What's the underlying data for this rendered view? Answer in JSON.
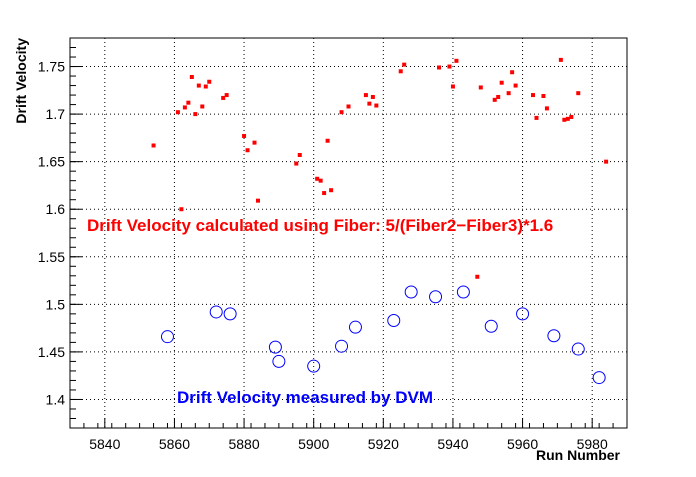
{
  "chart_data": {
    "type": "scatter",
    "title": "",
    "xlabel": "Run Number",
    "ylabel": "Drift Velocity",
    "xlim": [
      5830,
      5990
    ],
    "ylim": [
      1.37,
      1.78
    ],
    "x_ticks": [
      5840,
      5860,
      5880,
      5900,
      5920,
      5940,
      5960,
      5980
    ],
    "y_ticks": [
      1.4,
      1.45,
      1.5,
      1.55,
      1.6,
      1.65,
      1.7,
      1.75
    ],
    "grid": true,
    "annotations": [
      {
        "text": "Drift Velocity calculated using Fiber: 5/(Fiber2−Fiber3)*1.6",
        "color": "#ff0000"
      },
      {
        "text": "Drift Velocity measured by DVM",
        "color": "#0000ff"
      }
    ],
    "series": [
      {
        "marker": "square",
        "color": "#ff0000",
        "points": [
          [
            5854,
            1.667
          ],
          [
            5861,
            1.702
          ],
          [
            5862,
            1.6
          ],
          [
            5863,
            1.707
          ],
          [
            5864,
            1.712
          ],
          [
            5865,
            1.739
          ],
          [
            5866,
            1.7
          ],
          [
            5867,
            1.73
          ],
          [
            5868,
            1.708
          ],
          [
            5869,
            1.729
          ],
          [
            5870,
            1.734
          ],
          [
            5874,
            1.717
          ],
          [
            5875,
            1.72
          ],
          [
            5880,
            1.677
          ],
          [
            5881,
            1.662
          ],
          [
            5883,
            1.67
          ],
          [
            5884,
            1.609
          ],
          [
            5895,
            1.648
          ],
          [
            5896,
            1.657
          ],
          [
            5901,
            1.632
          ],
          [
            5902,
            1.63
          ],
          [
            5903,
            1.617
          ],
          [
            5904,
            1.672
          ],
          [
            5905,
            1.62
          ],
          [
            5908,
            1.702
          ],
          [
            5910,
            1.708
          ],
          [
            5915,
            1.72
          ],
          [
            5916,
            1.711
          ],
          [
            5917,
            1.718
          ],
          [
            5918,
            1.709
          ],
          [
            5925,
            1.745
          ],
          [
            5926,
            1.752
          ],
          [
            5936,
            1.749
          ],
          [
            5939,
            1.75
          ],
          [
            5940,
            1.729
          ],
          [
            5941,
            1.756
          ],
          [
            5947,
            1.529
          ],
          [
            5948,
            1.728
          ],
          [
            5952,
            1.715
          ],
          [
            5953,
            1.718
          ],
          [
            5954,
            1.733
          ],
          [
            5956,
            1.722
          ],
          [
            5957,
            1.744
          ],
          [
            5958,
            1.73
          ],
          [
            5963,
            1.72
          ],
          [
            5964,
            1.696
          ],
          [
            5966,
            1.719
          ],
          [
            5967,
            1.706
          ],
          [
            5971,
            1.757
          ],
          [
            5972,
            1.694
          ],
          [
            5973,
            1.695
          ],
          [
            5974,
            1.697
          ],
          [
            5976,
            1.722
          ],
          [
            5984,
            1.65
          ]
        ]
      },
      {
        "marker": "circle",
        "color": "#0000ff",
        "points": [
          [
            5858,
            1.466
          ],
          [
            5872,
            1.492
          ],
          [
            5876,
            1.49
          ],
          [
            5889,
            1.455
          ],
          [
            5890,
            1.44
          ],
          [
            5900,
            1.435
          ],
          [
            5908,
            1.456
          ],
          [
            5912,
            1.476
          ],
          [
            5923,
            1.483
          ],
          [
            5928,
            1.513
          ],
          [
            5935,
            1.508
          ],
          [
            5943,
            1.513
          ],
          [
            5951,
            1.477
          ],
          [
            5960,
            1.49
          ],
          [
            5969,
            1.467
          ],
          [
            5976,
            1.453
          ],
          [
            5982,
            1.423
          ]
        ]
      }
    ]
  }
}
